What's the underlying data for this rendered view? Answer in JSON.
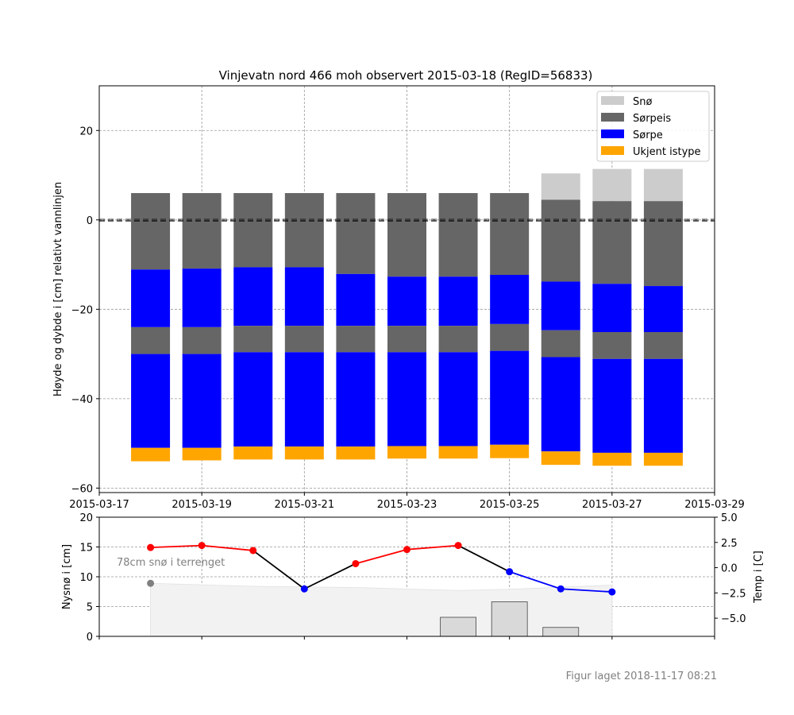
{
  "chart_data": [
    {
      "type": "bar",
      "stacked": true,
      "title": "Vinjevatn nord 466 moh observert 2015-03-18 (RegID=56833)",
      "ylabel": "Høyde og dybde i [cm] relativt vannlinjen",
      "xlim": [
        "2015-03-17",
        "2015-03-29"
      ],
      "ylim": [
        -61,
        30
      ],
      "x_ticks": [
        "2015-03-17",
        "2015-03-19",
        "2015-03-21",
        "2015-03-23",
        "2015-03-25",
        "2015-03-27",
        "2015-03-29"
      ],
      "y_ticks": [
        20,
        0,
        -20,
        -40,
        -60
      ],
      "grid": true,
      "legend_position": "top-right",
      "legend": [
        {
          "name": "Snø",
          "color": "#cccccc"
        },
        {
          "name": "Sørpeis",
          "color": "#666666"
        },
        {
          "name": "Sørpe",
          "color": "#0000ff"
        },
        {
          "name": "Ukjent istype",
          "color": "#ffa500"
        }
      ],
      "columns": [
        {
          "date": "2015-03-18",
          "layers": [
            {
              "type": "Sørpeis",
              "top": 6,
              "bottom": -11.1
            },
            {
              "type": "Sørpe",
              "top": -11.1,
              "bottom": -24
            },
            {
              "type": "Sørpeis",
              "top": -24,
              "bottom": -30
            },
            {
              "type": "Sørpe",
              "top": -30,
              "bottom": -51
            },
            {
              "type": "Ukjent istype",
              "top": -51,
              "bottom": -54
            }
          ]
        },
        {
          "date": "2015-03-19",
          "layers": [
            {
              "type": "Sørpeis",
              "top": 6,
              "bottom": -10.9
            },
            {
              "type": "Sørpe",
              "top": -10.9,
              "bottom": -24
            },
            {
              "type": "Sørpeis",
              "top": -24,
              "bottom": -30
            },
            {
              "type": "Sørpe",
              "top": -30,
              "bottom": -51
            },
            {
              "type": "Ukjent istype",
              "top": -51,
              "bottom": -53.8
            }
          ]
        },
        {
          "date": "2015-03-20",
          "layers": [
            {
              "type": "Sørpeis",
              "top": 6,
              "bottom": -10.6
            },
            {
              "type": "Sørpe",
              "top": -10.6,
              "bottom": -23.7
            },
            {
              "type": "Sørpeis",
              "top": -23.7,
              "bottom": -29.6
            },
            {
              "type": "Sørpe",
              "top": -29.6,
              "bottom": -50.7
            },
            {
              "type": "Ukjent istype",
              "top": -50.7,
              "bottom": -53.6
            }
          ]
        },
        {
          "date": "2015-03-21",
          "layers": [
            {
              "type": "Sørpeis",
              "top": 6,
              "bottom": -10.6
            },
            {
              "type": "Sørpe",
              "top": -10.6,
              "bottom": -23.7
            },
            {
              "type": "Sørpeis",
              "top": -23.7,
              "bottom": -29.6
            },
            {
              "type": "Sørpe",
              "top": -29.6,
              "bottom": -50.7
            },
            {
              "type": "Ukjent istype",
              "top": -50.7,
              "bottom": -53.6
            }
          ]
        },
        {
          "date": "2015-03-22",
          "layers": [
            {
              "type": "Sørpeis",
              "top": 6,
              "bottom": -12.1
            },
            {
              "type": "Sørpe",
              "top": -12.1,
              "bottom": -23.7
            },
            {
              "type": "Sørpeis",
              "top": -23.7,
              "bottom": -29.6
            },
            {
              "type": "Sørpe",
              "top": -29.6,
              "bottom": -50.7
            },
            {
              "type": "Ukjent istype",
              "top": -50.7,
              "bottom": -53.6
            }
          ]
        },
        {
          "date": "2015-03-23",
          "layers": [
            {
              "type": "Sørpeis",
              "top": 6,
              "bottom": -12.7
            },
            {
              "type": "Sørpe",
              "top": -12.7,
              "bottom": -23.7
            },
            {
              "type": "Sørpeis",
              "top": -23.7,
              "bottom": -29.6
            },
            {
              "type": "Sørpe",
              "top": -29.6,
              "bottom": -50.6
            },
            {
              "type": "Ukjent istype",
              "top": -50.6,
              "bottom": -53.4
            }
          ]
        },
        {
          "date": "2015-03-24",
          "layers": [
            {
              "type": "Sørpeis",
              "top": 6,
              "bottom": -12.7
            },
            {
              "type": "Sørpe",
              "top": -12.7,
              "bottom": -23.7
            },
            {
              "type": "Sørpeis",
              "top": -23.7,
              "bottom": -29.6
            },
            {
              "type": "Sørpe",
              "top": -29.6,
              "bottom": -50.6
            },
            {
              "type": "Ukjent istype",
              "top": -50.6,
              "bottom": -53.4
            }
          ]
        },
        {
          "date": "2015-03-25",
          "layers": [
            {
              "type": "Sørpeis",
              "top": 6,
              "bottom": -12.3
            },
            {
              "type": "Sørpe",
              "top": -12.3,
              "bottom": -23.3
            },
            {
              "type": "Sørpeis",
              "top": -23.3,
              "bottom": -29.3
            },
            {
              "type": "Sørpe",
              "top": -29.3,
              "bottom": -50.3
            },
            {
              "type": "Ukjent istype",
              "top": -50.3,
              "bottom": -53.3
            }
          ]
        },
        {
          "date": "2015-03-26",
          "layers": [
            {
              "type": "Snø",
              "top": 10.4,
              "bottom": 4.5
            },
            {
              "type": "Sørpeis",
              "top": 4.5,
              "bottom": -13.8
            },
            {
              "type": "Sørpe",
              "top": -13.8,
              "bottom": -24.7
            },
            {
              "type": "Sørpeis",
              "top": -24.7,
              "bottom": -30.7
            },
            {
              "type": "Sørpe",
              "top": -30.7,
              "bottom": -51.8
            },
            {
              "type": "Ukjent istype",
              "top": -51.8,
              "bottom": -54.8
            }
          ]
        },
        {
          "date": "2015-03-27",
          "layers": [
            {
              "type": "Snø",
              "top": 11.4,
              "bottom": 4.2
            },
            {
              "type": "Sørpeis",
              "top": 4.2,
              "bottom": -14.3
            },
            {
              "type": "Sørpe",
              "top": -14.3,
              "bottom": -25.1
            },
            {
              "type": "Sørpeis",
              "top": -25.1,
              "bottom": -31.1
            },
            {
              "type": "Sørpe",
              "top": -31.1,
              "bottom": -52.1
            },
            {
              "type": "Ukjent istype",
              "top": -52.1,
              "bottom": -55
            }
          ]
        },
        {
          "date": "2015-03-28",
          "layers": [
            {
              "type": "Snø",
              "top": 11.4,
              "bottom": 4.2
            },
            {
              "type": "Sørpeis",
              "top": 4.2,
              "bottom": -14.8
            },
            {
              "type": "Sørpe",
              "top": -14.8,
              "bottom": -25.1
            },
            {
              "type": "Sørpeis",
              "top": -25.1,
              "bottom": -31.1
            },
            {
              "type": "Sørpe",
              "top": -31.1,
              "bottom": -52.1
            },
            {
              "type": "Ukjent istype",
              "top": -52.1,
              "bottom": -55
            }
          ]
        }
      ]
    },
    {
      "type": "bar+line",
      "ylabel_left": "Nysnø i [cm]",
      "ylabel_right": "Temp i [C]",
      "ylim_left": [
        0,
        20
      ],
      "ylim_right": [
        -6.8,
        5
      ],
      "y_ticks_left": [
        0,
        5,
        10,
        15,
        20
      ],
      "y_ticks_right": [
        "5.0",
        "2.5",
        "0.0",
        "−2.5",
        "−5.0"
      ],
      "grid": true,
      "annotation": "78cm snø i terrenget",
      "terrain_snow_marker": {
        "date": "2015-03-18",
        "value": 8.9,
        "color": "#808080"
      },
      "terrain_snow_area": [
        {
          "date": "2015-03-18",
          "value": 8.9
        },
        {
          "date": "2015-03-20",
          "value": 8.4
        },
        {
          "date": "2015-03-22",
          "value": 8.2
        },
        {
          "date": "2015-03-24",
          "value": 7.7
        },
        {
          "date": "2015-03-25",
          "value": 7.9
        },
        {
          "date": "2015-03-27",
          "value": 8.6
        }
      ],
      "new_snow_bars": [
        {
          "date": "2015-03-24",
          "value": 3.2
        },
        {
          "date": "2015-03-25",
          "value": 5.8
        },
        {
          "date": "2015-03-26",
          "value": 1.5
        }
      ],
      "temperature": [
        {
          "date": "2015-03-18",
          "value": 2.0,
          "color": "#ff0000"
        },
        {
          "date": "2015-03-19",
          "value": 2.2,
          "color": "#ff0000"
        },
        {
          "date": "2015-03-20",
          "value": 1.7,
          "color": "#ff0000"
        },
        {
          "date": "2015-03-21",
          "value": -2.1,
          "color": "#0000ff"
        },
        {
          "date": "2015-03-22",
          "value": 0.4,
          "color": "#ff0000"
        },
        {
          "date": "2015-03-23",
          "value": 1.8,
          "color": "#ff0000"
        },
        {
          "date": "2015-03-24",
          "value": 2.2,
          "color": "#ff0000"
        },
        {
          "date": "2015-03-25",
          "value": -0.4,
          "color": "#0000ff"
        },
        {
          "date": "2015-03-26",
          "value": -2.1,
          "color": "#0000ff"
        },
        {
          "date": "2015-03-27",
          "value": -2.4,
          "color": "#0000ff"
        }
      ]
    }
  ],
  "footer": "Figur laget 2018-11-17 08:21"
}
